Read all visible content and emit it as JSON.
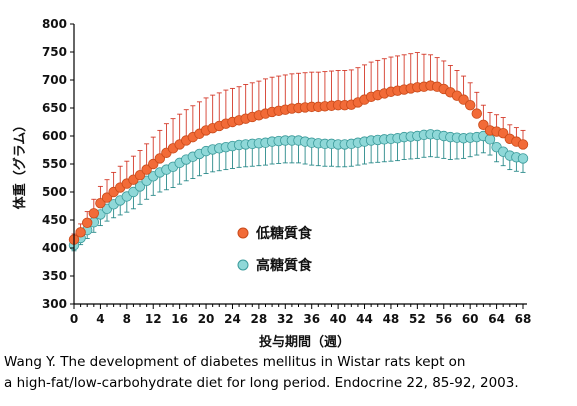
{
  "chart_data": {
    "type": "line",
    "xlabel": "投与期間（週）",
    "ylabel": "体重（グラム）",
    "xlim": [
      0,
      68
    ],
    "ylim": [
      300,
      800
    ],
    "xticks": [
      0,
      4,
      8,
      12,
      16,
      20,
      24,
      28,
      32,
      36,
      40,
      44,
      48,
      52,
      56,
      60,
      64,
      68
    ],
    "yticks": [
      300,
      350,
      400,
      450,
      500,
      550,
      600,
      650,
      700,
      750,
      800
    ],
    "legend_position": "center-left",
    "error_bars": true,
    "grid": false,
    "x": [
      0,
      1,
      2,
      3,
      4,
      5,
      6,
      7,
      8,
      9,
      10,
      11,
      12,
      13,
      14,
      15,
      16,
      17,
      18,
      19,
      20,
      21,
      22,
      23,
      24,
      25,
      26,
      27,
      28,
      29,
      30,
      31,
      32,
      33,
      34,
      35,
      36,
      37,
      38,
      39,
      40,
      41,
      42,
      43,
      44,
      45,
      46,
      47,
      48,
      49,
      50,
      51,
      52,
      53,
      54,
      55,
      56,
      57,
      58,
      59,
      60,
      61,
      62,
      63,
      64,
      65,
      66,
      67,
      68
    ],
    "series": [
      {
        "name": "低糖質食",
        "color": "#f26b38",
        "edge_color": "#c94a1a",
        "error_color": "#d43a2a",
        "values": [
          415,
          428,
          445,
          462,
          480,
          490,
          500,
          508,
          515,
          522,
          530,
          540,
          550,
          560,
          570,
          578,
          585,
          592,
          598,
          604,
          610,
          614,
          618,
          622,
          625,
          628,
          631,
          634,
          637,
          640,
          643,
          645,
          647,
          649,
          650,
          651,
          652,
          652,
          653,
          654,
          655,
          655,
          656,
          660,
          665,
          670,
          673,
          676,
          679,
          681,
          683,
          685,
          687,
          688,
          690,
          688,
          684,
          678,
          672,
          665,
          655,
          640,
          620,
          610,
          608,
          605,
          595,
          590,
          585
        ],
        "errors": [
          10,
          15,
          20,
          25,
          30,
          32,
          35,
          38,
          40,
          42,
          44,
          46,
          48,
          50,
          52,
          53,
          54,
          55,
          56,
          57,
          58,
          59,
          59,
          60,
          60,
          60,
          61,
          61,
          61,
          62,
          62,
          62,
          62,
          62,
          62,
          62,
          62,
          62,
          62,
          62,
          62,
          62,
          62,
          62,
          62,
          62,
          62,
          62,
          62,
          62,
          62,
          62,
          62,
          58,
          55,
          52,
          50,
          48,
          45,
          42,
          40,
          38,
          35,
          32,
          30,
          28,
          25,
          25,
          25
        ]
      },
      {
        "name": "高糖質食",
        "color": "#8fd8d8",
        "edge_color": "#3a9a9a",
        "error_color": "#2a8a8a",
        "values": [
          405,
          418,
          432,
          446,
          460,
          470,
          478,
          485,
          492,
          500,
          510,
          520,
          528,
          535,
          540,
          545,
          552,
          558,
          563,
          568,
          573,
          576,
          578,
          580,
          582,
          584,
          585,
          586,
          587,
          588,
          590,
          591,
          592,
          592,
          592,
          590,
          588,
          587,
          586,
          586,
          585,
          585,
          586,
          588,
          590,
          592,
          593,
          594,
          595,
          596,
          598,
          599,
          600,
          602,
          603,
          602,
          600,
          598,
          597,
          596,
          597,
          598,
          600,
          594,
          580,
          572,
          565,
          562,
          560
        ],
        "errors": [
          10,
          12,
          15,
          18,
          20,
          22,
          24,
          26,
          28,
          30,
          32,
          33,
          34,
          35,
          36,
          37,
          38,
          38,
          39,
          39,
          40,
          40,
          40,
          40,
          40,
          40,
          40,
          40,
          40,
          40,
          40,
          40,
          40,
          40,
          40,
          40,
          40,
          40,
          40,
          40,
          40,
          40,
          40,
          40,
          40,
          40,
          40,
          40,
          40,
          40,
          40,
          40,
          40,
          40,
          40,
          40,
          40,
          40,
          38,
          36,
          34,
          32,
          30,
          28,
          26,
          25,
          25,
          25,
          25
        ]
      }
    ]
  },
  "citation": {
    "line1": "Wang Y. The development of diabetes mellitus in Wistar rats kept on",
    "line2": "a high-fat/low-carbohydrate diet for long period. Endocrine 22, 85-92, 2003."
  }
}
